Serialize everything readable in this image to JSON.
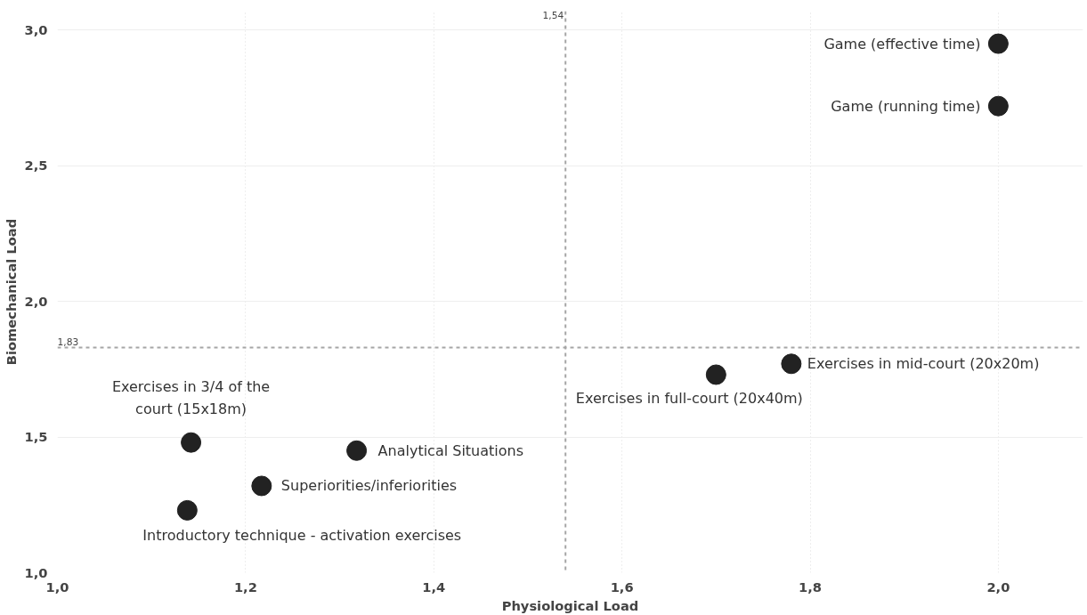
{
  "chart_data": {
    "type": "scatter",
    "xlabel": "Physiological Load",
    "ylabel": "Biomechanical Load",
    "xlim": [
      1.0,
      2.09
    ],
    "ylim": [
      1.0,
      3.07
    ],
    "xticks": [
      {
        "value": 1.0,
        "label": "1,0"
      },
      {
        "value": 1.2,
        "label": "1,2"
      },
      {
        "value": 1.4,
        "label": "1,4"
      },
      {
        "value": 1.6,
        "label": "1,6"
      },
      {
        "value": 1.8,
        "label": "1,8"
      },
      {
        "value": 2.0,
        "label": "2,0"
      }
    ],
    "yticks": [
      {
        "value": 1.0,
        "label": "1,0"
      },
      {
        "value": 1.5,
        "label": "1,5"
      },
      {
        "value": 2.0,
        "label": "2,0"
      },
      {
        "value": 2.5,
        "label": "2,5"
      },
      {
        "value": 3.0,
        "label": "3,0"
      }
    ],
    "grid": true,
    "legend": false,
    "marker": "circle",
    "ref_lines": [
      {
        "axis": "x",
        "value": 1.54,
        "label": "1,54",
        "color": "#a6a6a6",
        "line_style": "dashed"
      },
      {
        "axis": "y",
        "value": 1.83,
        "label": "1,83",
        "color": "#a6a6a6",
        "line_style": "dashed"
      }
    ],
    "series": [
      {
        "name": "Game (effective time)",
        "color": "#222222",
        "x": [
          2.0
        ],
        "values": [
          2.95
        ]
      },
      {
        "name": "Game (running time)",
        "color": "#222222",
        "x": [
          2.0
        ],
        "values": [
          2.72
        ]
      },
      {
        "name": "Exercises in mid-court (20x20m)",
        "color": "#222222",
        "x": [
          1.78
        ],
        "values": [
          1.77
        ]
      },
      {
        "name": "Exercises in full-court (20x40m)",
        "color": "#222222",
        "x": [
          1.7
        ],
        "values": [
          1.73
        ]
      },
      {
        "name": "Exercises in 3/4 of the court (15x18m)",
        "color": "#222222",
        "x": [
          1.142
        ],
        "values": [
          1.48
        ]
      },
      {
        "name": "Analytical Situations",
        "color": "#222222",
        "x": [
          1.318
        ],
        "values": [
          1.45
        ]
      },
      {
        "name": "Superiorities/inferiorities",
        "color": "#222222",
        "x": [
          1.217
        ],
        "values": [
          1.32
        ]
      },
      {
        "name": "Introductory technique - activation exercises",
        "color": "#222222",
        "x": [
          1.138
        ],
        "values": [
          1.23
        ]
      }
    ]
  }
}
